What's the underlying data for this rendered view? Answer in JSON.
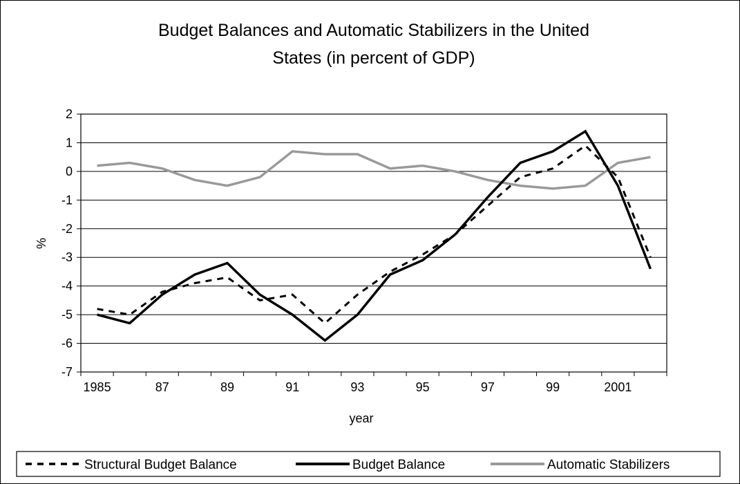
{
  "chart_data": {
    "type": "line",
    "title_lines": [
      "Budget Balances and Automatic Stabilizers in the United",
      "States (in percent of GDP)"
    ],
    "xlabel": "year",
    "ylabel": "%",
    "ylim": [
      -7,
      2
    ],
    "y_ticks": [
      2,
      1,
      0,
      -1,
      -2,
      -3,
      -4,
      -5,
      -6,
      -7
    ],
    "x": [
      1985,
      1986,
      1987,
      1988,
      1989,
      1990,
      1991,
      1992,
      1993,
      1994,
      1995,
      1996,
      1997,
      1998,
      1999,
      2000,
      2001,
      2002
    ],
    "x_tick_labels": [
      "1985",
      "87",
      "89",
      "91",
      "93",
      "95",
      "97",
      "99",
      "2001"
    ],
    "x_tick_years": [
      1985,
      1987,
      1989,
      1991,
      1993,
      1995,
      1997,
      1999,
      2001
    ],
    "grid": "horizontal",
    "legend_position": "bottom",
    "series": [
      {
        "name": "Structural Budget Balance",
        "style": "dashed",
        "color": "#000000",
        "values": [
          -4.8,
          -5.0,
          -4.2,
          -3.9,
          -3.7,
          -4.5,
          -4.3,
          -5.3,
          -4.3,
          -3.5,
          -2.9,
          -2.2,
          -1.2,
          -0.2,
          0.1,
          0.9,
          -0.2,
          -3.0
        ]
      },
      {
        "name": "Budget Balance",
        "style": "solid",
        "color": "#000000",
        "values": [
          -5.0,
          -5.3,
          -4.3,
          -3.6,
          -3.2,
          -4.3,
          -5.0,
          -5.9,
          -5.0,
          -3.6,
          -3.1,
          -2.2,
          -0.9,
          0.3,
          0.7,
          1.4,
          -0.5,
          -3.4
        ]
      },
      {
        "name": "Automatic Stabilizers",
        "style": "solid",
        "color": "#999999",
        "values": [
          0.2,
          0.3,
          0.1,
          -0.3,
          -0.5,
          -0.2,
          0.7,
          0.6,
          0.6,
          0.1,
          0.2,
          0.0,
          -0.3,
          -0.5,
          -0.6,
          -0.5,
          0.3,
          0.5
        ]
      }
    ]
  }
}
